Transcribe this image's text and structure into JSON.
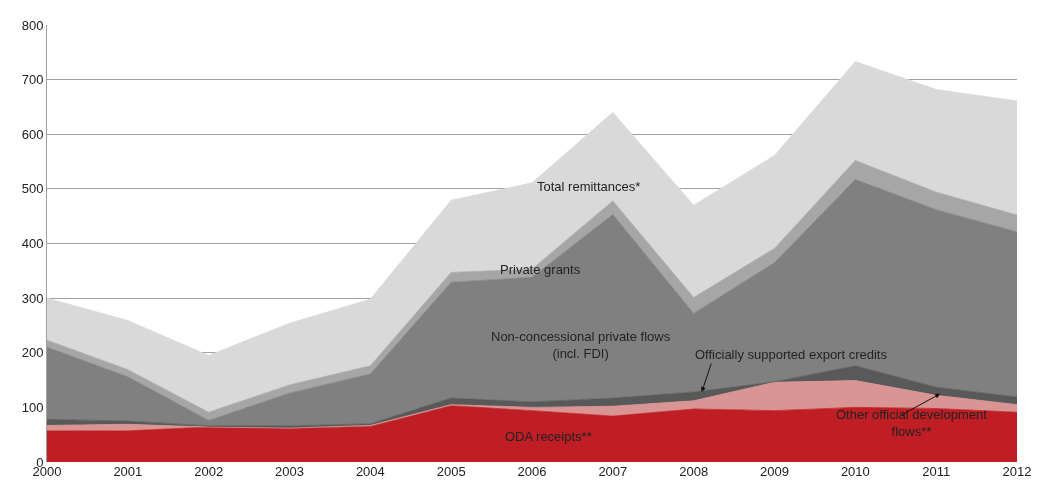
{
  "chart_data": {
    "type": "area",
    "stacked": true,
    "x": [
      2000,
      2001,
      2002,
      2003,
      2004,
      2005,
      2006,
      2007,
      2008,
      2009,
      2010,
      2011,
      2012
    ],
    "series": [
      {
        "name": "ODA receipts**",
        "color": "#be1e24",
        "values": [
          57,
          57,
          64,
          62,
          65,
          103,
          94,
          84,
          97,
          94,
          100,
          98,
          91
        ]
      },
      {
        "name": "Other official development flows**",
        "color": "#d99594",
        "values": [
          10,
          12,
          0,
          0,
          2,
          2,
          6,
          18,
          15,
          52,
          49,
          24,
          14
        ]
      },
      {
        "name": "Officially supported export credits",
        "color": "#595959",
        "values": [
          11,
          6,
          2,
          4,
          3,
          12,
          10,
          15,
          16,
          1,
          27,
          15,
          14
        ]
      },
      {
        "name": "Non-concessional private flows (incl. FDI)",
        "color": "#808080",
        "values": [
          132,
          81,
          10,
          60,
          91,
          212,
          228,
          336,
          144,
          218,
          341,
          325,
          302
        ]
      },
      {
        "name": "Private grants",
        "color": "#a6a6a6",
        "values": [
          13,
          13,
          15,
          15,
          15,
          18,
          15,
          25,
          29,
          26,
          35,
          32,
          31
        ]
      },
      {
        "name": "Total remittances*",
        "color": "#d9d9d9",
        "values": [
          77,
          90,
          104,
          113,
          122,
          132,
          158,
          162,
          169,
          170,
          181,
          188,
          209
        ]
      }
    ],
    "xlim": [
      2000,
      2012
    ],
    "xticks": [
      2000,
      2001,
      2002,
      2003,
      2004,
      2005,
      2006,
      2007,
      2008,
      2009,
      2010,
      2011,
      2012
    ],
    "ylim": [
      0,
      800
    ],
    "yticks": [
      0,
      100,
      200,
      300,
      400,
      500,
      600,
      700,
      800
    ],
    "grid": "y"
  }
}
